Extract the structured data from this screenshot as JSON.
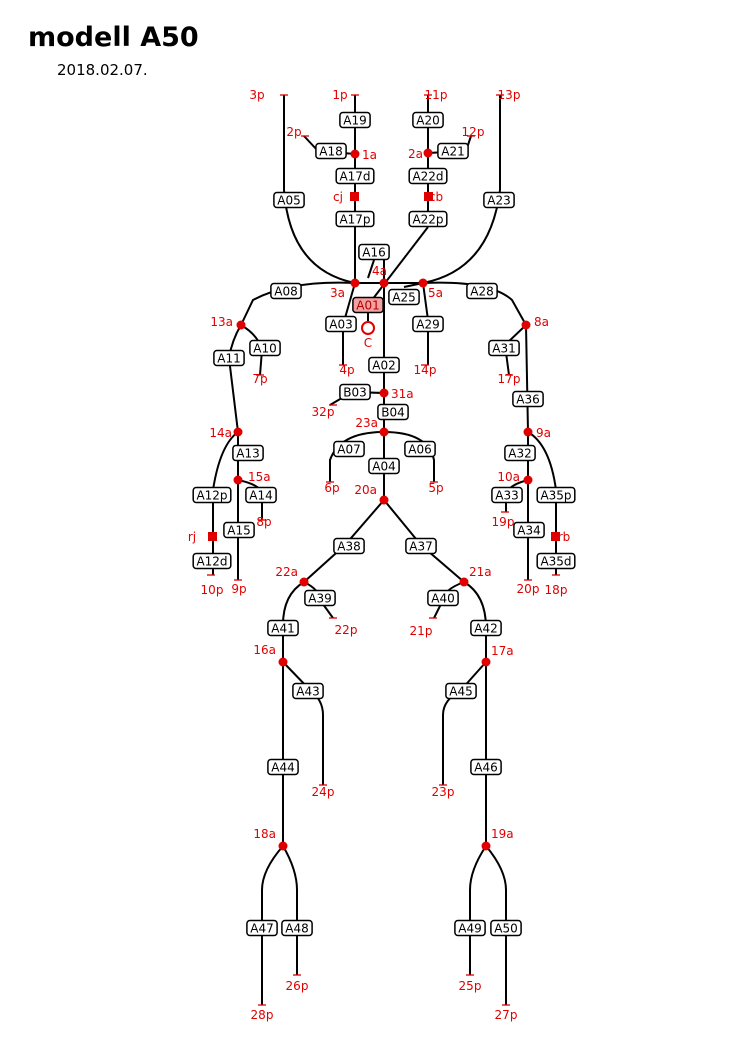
{
  "title": "modell A50",
  "date": "2018.02.07.",
  "colors": {
    "accent": "#e00000",
    "highlight": "#f4a0a0",
    "line": "#000000"
  },
  "boxes": [
    "A19",
    "A18",
    "A17d",
    "A17p",
    "A20",
    "A21",
    "A22d",
    "A22p",
    "A05",
    "A23",
    "A16",
    "A01",
    "A25",
    "A08",
    "A28",
    "A03",
    "A29",
    "A10",
    "A11",
    "A31",
    "A02",
    "B03",
    "B04",
    "A36",
    "A07",
    "A06",
    "A13",
    "A32",
    "A04",
    "A12p",
    "A14",
    "A33",
    "A35p",
    "A15",
    "A34",
    "A12d",
    "A35d",
    "A38",
    "A37",
    "A39",
    "A40",
    "A41",
    "A42",
    "A43",
    "A45",
    "A44",
    "A46",
    "A47",
    "A48",
    "A49",
    "A50"
  ],
  "junctions": [
    "1a",
    "2a",
    "3a",
    "4a",
    "5a",
    "8a",
    "9a",
    "10a",
    "13a",
    "14a",
    "15a",
    "16a",
    "17a",
    "18a",
    "19a",
    "20a",
    "21a",
    "22a",
    "23a",
    "31a"
  ],
  "endpoints": [
    "1p",
    "2p",
    "3p",
    "4p",
    "5p",
    "6p",
    "7p",
    "8p",
    "9p",
    "10p",
    "11p",
    "12p",
    "13p",
    "14p",
    "17p",
    "18p",
    "19p",
    "20p",
    "21p",
    "22p",
    "23p",
    "24p",
    "25p",
    "26p",
    "27p",
    "28p",
    "32p"
  ],
  "markers": [
    "cj",
    "cb",
    "rj",
    "rb",
    "C"
  ]
}
